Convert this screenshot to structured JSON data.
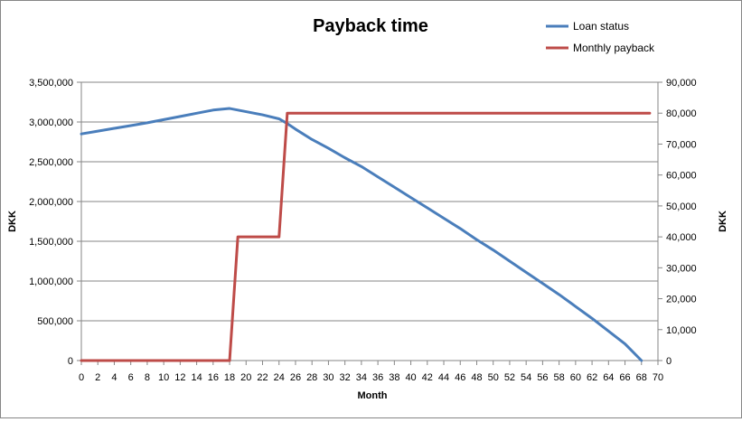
{
  "chart_data": {
    "type": "line",
    "title": "Payback time",
    "xlabel": "Month",
    "ylabel_left": "DKK",
    "ylabel_right": "DKK",
    "xlim": [
      0,
      70
    ],
    "x_ticks": [
      0,
      2,
      4,
      6,
      8,
      10,
      12,
      14,
      16,
      18,
      20,
      22,
      24,
      26,
      28,
      30,
      32,
      34,
      36,
      38,
      40,
      42,
      44,
      46,
      48,
      50,
      52,
      54,
      56,
      58,
      60,
      62,
      64,
      66,
      68,
      70
    ],
    "ylim_left": [
      0,
      3500000
    ],
    "y_ticks_left": [
      0,
      500000,
      1000000,
      1500000,
      2000000,
      2500000,
      3000000,
      3500000
    ],
    "y_tick_labels_left": [
      "0",
      "500,000",
      "1,000,000",
      "1,500,000",
      "2,000,000",
      "2,500,000",
      "3,000,000",
      "3,500,000"
    ],
    "ylim_right": [
      0,
      90000
    ],
    "y_ticks_right": [
      0,
      10000,
      20000,
      30000,
      40000,
      50000,
      60000,
      70000,
      80000,
      90000
    ],
    "y_tick_labels_right": [
      "0",
      "10,000",
      "20,000",
      "30,000",
      "40,000",
      "50,000",
      "60,000",
      "70,000",
      "80,000",
      "90,000"
    ],
    "grid": "horizontal",
    "legend_position": "top-right",
    "series": [
      {
        "name": "Loan status",
        "axis": "left",
        "color": "#4a7ebb",
        "x": [
          0,
          2,
          4,
          6,
          8,
          10,
          12,
          14,
          16,
          18,
          20,
          22,
          24,
          25,
          26,
          28,
          30,
          32,
          34,
          36,
          38,
          40,
          42,
          44,
          46,
          48,
          50,
          52,
          54,
          56,
          58,
          60,
          62,
          64,
          66,
          68
        ],
        "y": [
          2850000,
          2885000,
          2920000,
          2955000,
          2990000,
          3030000,
          3070000,
          3110000,
          3150000,
          3170000,
          3130000,
          3090000,
          3040000,
          2980000,
          2910000,
          2780000,
          2670000,
          2550000,
          2440000,
          2310000,
          2180000,
          2050000,
          1920000,
          1790000,
          1660000,
          1520000,
          1390000,
          1250000,
          1110000,
          970000,
          830000,
          680000,
          530000,
          370000,
          210000,
          0
        ]
      },
      {
        "name": "Monthly payback",
        "axis": "right",
        "color": "#be4b48",
        "x": [
          0,
          18,
          19,
          24,
          25,
          69
        ],
        "y": [
          0,
          0,
          40000,
          40000,
          80000,
          80000
        ]
      }
    ]
  }
}
